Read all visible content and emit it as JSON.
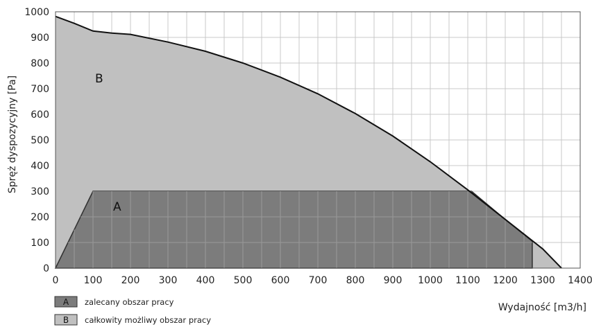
{
  "chart_data": {
    "type": "area",
    "xlabel": "Wydajność [m3/h]",
    "ylabel": "Spręż dyspozycyjny [Pa]",
    "xlim": [
      0,
      1400
    ],
    "ylim": [
      0,
      1000
    ],
    "xticks": [
      0,
      100,
      200,
      300,
      400,
      500,
      600,
      700,
      800,
      900,
      1000,
      1100,
      1200,
      1300,
      1400
    ],
    "yticks": [
      0,
      100,
      200,
      300,
      400,
      500,
      600,
      700,
      800,
      900,
      1000
    ],
    "grid": true,
    "minor_x_grid_step": 50,
    "series": [
      {
        "name": "całkowity możliwy obszar pracy",
        "label": "B",
        "color": "#c0c0c0",
        "x": [
          0,
          50,
          100,
          150,
          200,
          300,
          400,
          500,
          600,
          700,
          800,
          900,
          1000,
          1100,
          1200,
          1300,
          1350
        ],
        "y": [
          982,
          955,
          925,
          917,
          912,
          882,
          846,
          800,
          745,
          680,
          603,
          515,
          415,
          305,
          190,
          75,
          0
        ]
      },
      {
        "name": "zalecany obszar pracy",
        "label": "A",
        "color": "#7c7c7c",
        "x": [
          0,
          100,
          1110,
          1200,
          1272,
          1272
        ],
        "y": [
          0,
          300,
          300,
          190,
          105,
          0
        ]
      }
    ],
    "legend_position": "bottom-left"
  }
}
